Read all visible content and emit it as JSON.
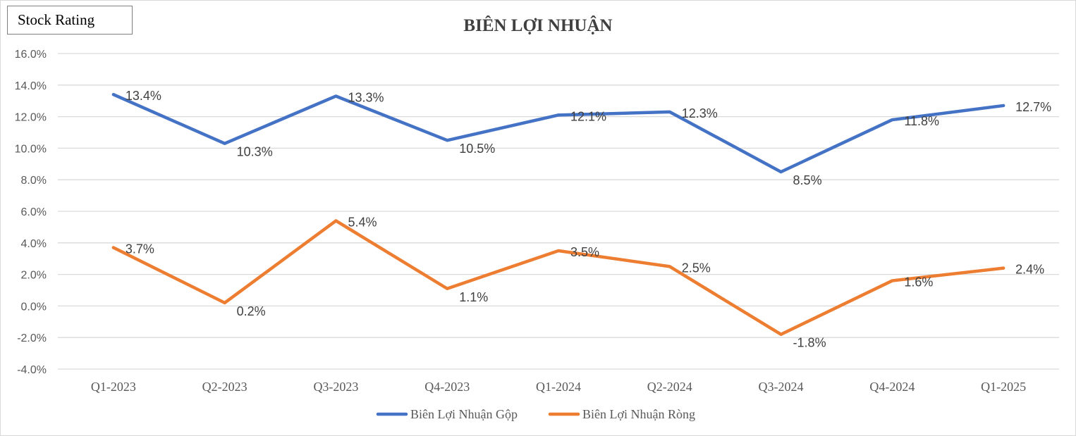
{
  "badge": {
    "label": "Stock Rating"
  },
  "chart_data": {
    "type": "line",
    "title": "BIÊN LỢI NHUẬN",
    "xlabel": "",
    "ylabel": "",
    "ylim": [
      -4.0,
      16.0
    ],
    "yticks": [
      -4.0,
      -2.0,
      0.0,
      2.0,
      4.0,
      6.0,
      8.0,
      10.0,
      12.0,
      14.0,
      16.0
    ],
    "ytick_labels": [
      "-4.0%",
      "-2.0%",
      "0.0%",
      "2.0%",
      "4.0%",
      "6.0%",
      "8.0%",
      "10.0%",
      "12.0%",
      "14.0%",
      "16.0%"
    ],
    "categories": [
      "Q1-2023",
      "Q2-2023",
      "Q3-2023",
      "Q4-2023",
      "Q1-2024",
      "Q2-2024",
      "Q3-2024",
      "Q4-2024",
      "Q1-2025"
    ],
    "grid": true,
    "legend": "bottom",
    "series": [
      {
        "name": "Biên Lợi Nhuận Gộp",
        "color": "#4472c4",
        "values": [
          13.4,
          10.3,
          13.3,
          10.5,
          12.1,
          12.3,
          8.5,
          11.8,
          12.7
        ],
        "labels": [
          "13.4%",
          "10.3%",
          "13.3%",
          "10.5%",
          "12.1%",
          "12.3%",
          "8.5%",
          "11.8%",
          "12.7%"
        ]
      },
      {
        "name": "Biên Lợi Nhuận Ròng",
        "color": "#ed7d31",
        "values": [
          3.7,
          0.2,
          5.4,
          1.1,
          3.5,
          2.5,
          -1.8,
          1.6,
          2.4
        ],
        "labels": [
          "3.7%",
          "0.2%",
          "5.4%",
          "1.1%",
          "3.5%",
          "2.5%",
          "-1.8%",
          "1.6%",
          "2.4%"
        ]
      }
    ]
  }
}
